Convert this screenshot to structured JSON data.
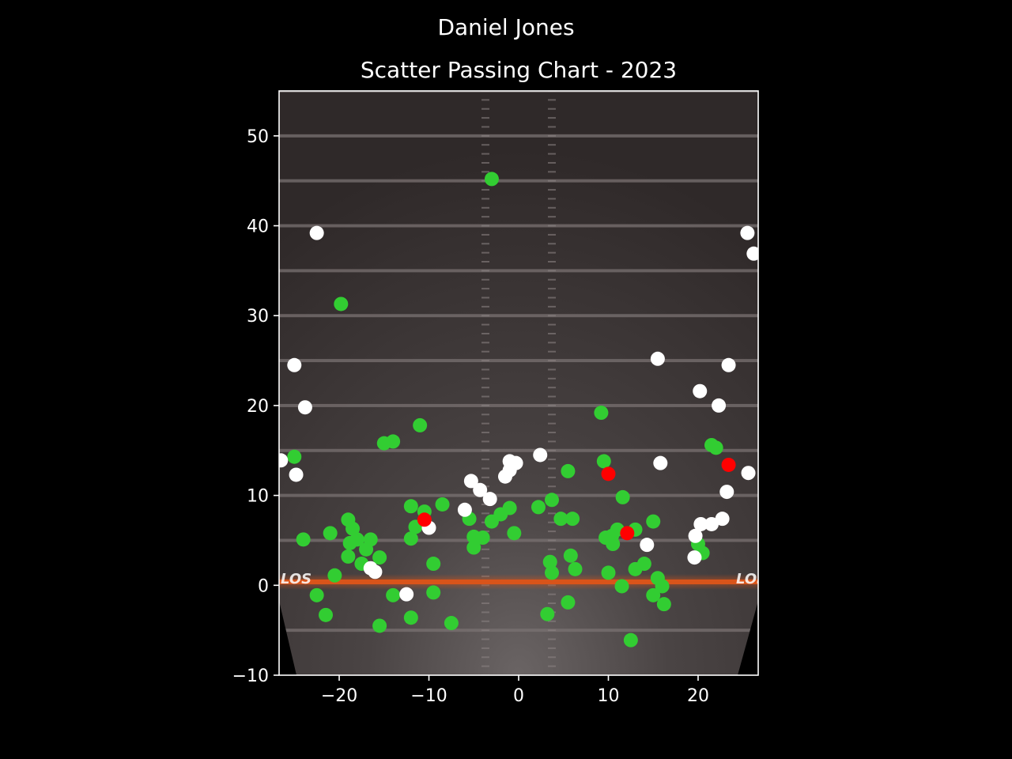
{
  "header": {
    "player_name": "Daniel Jones",
    "chart_title": "Scatter Passing Chart - 2023"
  },
  "field": {
    "los_label": "LOS"
  },
  "colors": {
    "background": "#000000",
    "complete": "#32cd32",
    "incomplete": "#ffffff",
    "interception": "#ff0000",
    "los_line": "#d9541a"
  },
  "chart_data": {
    "type": "scatter",
    "title": "Scatter Passing Chart - 2023",
    "suptitle": "Daniel Jones",
    "xlabel": "",
    "ylabel": "",
    "xlim": [
      -26.7,
      26.7
    ],
    "ylim": [
      -10,
      55
    ],
    "x_ticks": [
      -20,
      -10,
      0,
      10,
      20
    ],
    "y_ticks": [
      -10,
      0,
      10,
      20,
      30,
      40,
      50
    ],
    "grid": false,
    "series": [
      {
        "color": "#32cd32",
        "points": [
          [
            -3,
            45.2
          ],
          [
            -19.8,
            31.3
          ],
          [
            -11,
            17.8
          ],
          [
            -15,
            15.8
          ],
          [
            -14,
            16
          ],
          [
            -25,
            14.3
          ],
          [
            -12,
            8.8
          ],
          [
            -10.5,
            8.2
          ],
          [
            -8.5,
            9
          ],
          [
            -11.5,
            6.5
          ],
          [
            -12,
            5.2
          ],
          [
            -10.5,
            7.2
          ],
          [
            -24,
            5.1
          ],
          [
            -21,
            5.8
          ],
          [
            -19,
            7.3
          ],
          [
            -18.5,
            6.3
          ],
          [
            -18,
            5.1
          ],
          [
            -18.8,
            4.7
          ],
          [
            -16.5,
            5.1
          ],
          [
            -17,
            4
          ],
          [
            -19,
            3.2
          ],
          [
            -17.5,
            2.4
          ],
          [
            -15.5,
            3.1
          ],
          [
            -20.5,
            1.1
          ],
          [
            -22.5,
            -1.1
          ],
          [
            -21.5,
            -3.3
          ],
          [
            -14,
            -1.1
          ],
          [
            -15.5,
            -4.5
          ],
          [
            -12,
            -3.6
          ],
          [
            -9.5,
            2.4
          ],
          [
            -9.5,
            -0.8
          ],
          [
            -7.5,
            -4.2
          ],
          [
            -5.5,
            7.4
          ],
          [
            -5,
            5.4
          ],
          [
            -5,
            4.2
          ],
          [
            -4,
            5.3
          ],
          [
            -3,
            7.1
          ],
          [
            -2,
            7.9
          ],
          [
            -1,
            8.6
          ],
          [
            -0.5,
            5.8
          ],
          [
            2.2,
            8.7
          ],
          [
            3.7,
            9.5
          ],
          [
            4.7,
            7.4
          ],
          [
            6,
            7.4
          ],
          [
            5.5,
            12.7
          ],
          [
            5.8,
            3.3
          ],
          [
            3.5,
            2.6
          ],
          [
            3.7,
            1.4
          ],
          [
            6.3,
            1.8
          ],
          [
            3.2,
            -3.2
          ],
          [
            5.5,
            -1.9
          ],
          [
            9.2,
            19.2
          ],
          [
            9.5,
            13.8
          ],
          [
            11.6,
            9.8
          ],
          [
            9.7,
            5.3
          ],
          [
            10.4,
            5.5
          ],
          [
            11,
            6.2
          ],
          [
            10.5,
            4.6
          ],
          [
            13,
            6.2
          ],
          [
            15,
            7.1
          ],
          [
            10,
            1.4
          ],
          [
            13,
            1.8
          ],
          [
            14,
            2.4
          ],
          [
            15.5,
            0.8
          ],
          [
            11.5,
            -0.1
          ],
          [
            15,
            -1.1
          ],
          [
            16,
            -0.1
          ],
          [
            16.2,
            -2.1
          ],
          [
            12.5,
            -6.1
          ],
          [
            21.5,
            15.6
          ],
          [
            22,
            15.3
          ],
          [
            20,
            4.6
          ],
          [
            20.5,
            3.6
          ]
        ]
      },
      {
        "color": "#ffffff",
        "points": [
          [
            -22.5,
            39.2
          ],
          [
            -25,
            24.5
          ],
          [
            -23.8,
            19.8
          ],
          [
            -26.5,
            13.9
          ],
          [
            -24.8,
            12.3
          ],
          [
            -16.5,
            1.9
          ],
          [
            -16,
            1.5
          ],
          [
            -12.5,
            -1
          ],
          [
            -10,
            6.4
          ],
          [
            -6,
            8.4
          ],
          [
            -5.3,
            11.6
          ],
          [
            -4.3,
            10.6
          ],
          [
            -3.2,
            9.6
          ],
          [
            -1.5,
            12.1
          ],
          [
            -1,
            12.8
          ],
          [
            -1,
            13.8
          ],
          [
            -0.3,
            13.6
          ],
          [
            2.4,
            14.5
          ],
          [
            15.5,
            25.2
          ],
          [
            15.8,
            13.6
          ],
          [
            14.3,
            4.5
          ],
          [
            20.2,
            21.6
          ],
          [
            22.3,
            20
          ],
          [
            23.4,
            24.5
          ],
          [
            23.2,
            10.4
          ],
          [
            25.5,
            39.2
          ],
          [
            26.2,
            36.9
          ],
          [
            25.6,
            12.5
          ],
          [
            20.3,
            6.8
          ],
          [
            21.5,
            6.8
          ],
          [
            22.7,
            7.4
          ],
          [
            19.7,
            5.5
          ],
          [
            19.6,
            3.1
          ]
        ]
      },
      {
        "color": "#ff0000",
        "points": [
          [
            -10.5,
            7.3
          ],
          [
            10,
            12.4
          ],
          [
            12.1,
            5.8
          ],
          [
            23.4,
            13.4
          ]
        ]
      }
    ]
  }
}
